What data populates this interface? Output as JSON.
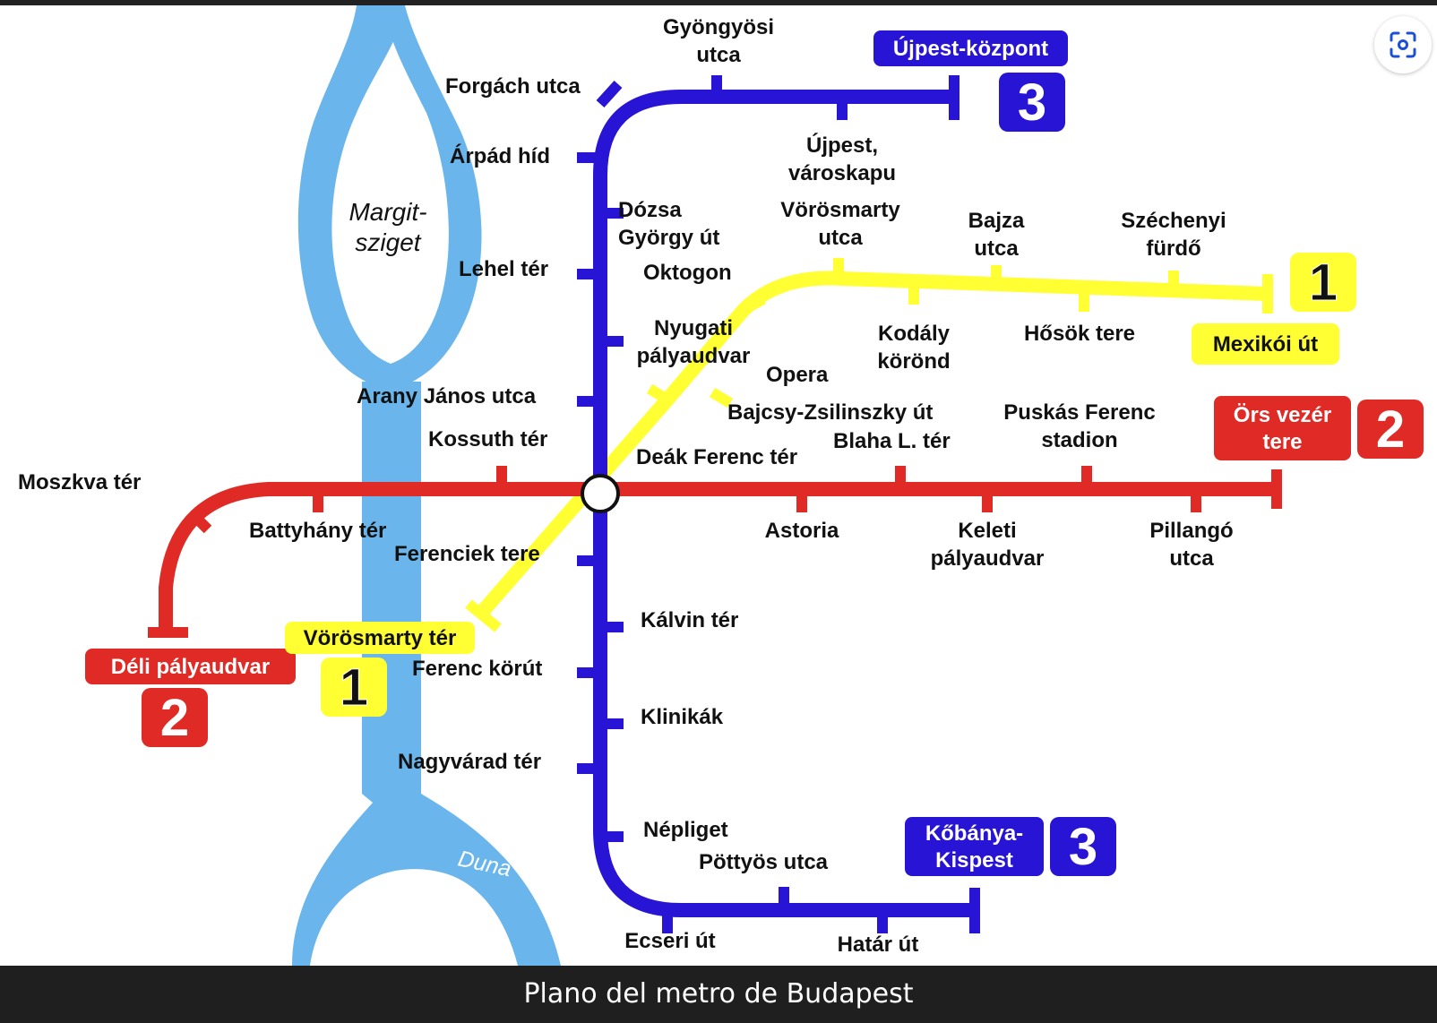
{
  "caption": "Plano del metro de Budapest",
  "lens_button": {
    "icon": "lens-scan-icon"
  },
  "map": {
    "colors": {
      "river": "#6ab6ec",
      "line1": "#ffff33",
      "line2": "#e02a25",
      "line3": "#2814d4",
      "hub": "#ffffff"
    },
    "river_name": "Duna",
    "island_name": [
      "Margit-",
      "sziget"
    ],
    "stations": [
      {
        "id": "gyongyosi",
        "lines": [
          "Gyöngyösi",
          "utca"
        ]
      },
      {
        "id": "forgach",
        "lines": [
          "Forgách utca"
        ]
      },
      {
        "id": "arpad",
        "lines": [
          "Árpád híd"
        ]
      },
      {
        "id": "ujpest-varoskapu",
        "lines": [
          "Újpest,",
          "városkapu"
        ]
      },
      {
        "id": "dozsa",
        "lines": [
          "Dózsa",
          "György út"
        ]
      },
      {
        "id": "vorosmarty-utca",
        "lines": [
          "Vörösmarty",
          "utca"
        ]
      },
      {
        "id": "bajza",
        "lines": [
          "Bajza",
          "utca"
        ]
      },
      {
        "id": "szechenyi",
        "lines": [
          "Széchenyi",
          "fürdő"
        ]
      },
      {
        "id": "lehel",
        "lines": [
          "Lehel tér"
        ]
      },
      {
        "id": "oktogon",
        "lines": [
          "Oktogon"
        ]
      },
      {
        "id": "kodaly",
        "lines": [
          "Kodály",
          "körönd"
        ]
      },
      {
        "id": "hosok",
        "lines": [
          "Hősök tere"
        ]
      },
      {
        "id": "nyugati",
        "lines": [
          "Nyugati",
          "pályaudvar"
        ]
      },
      {
        "id": "opera",
        "lines": [
          "Opera"
        ]
      },
      {
        "id": "arany",
        "lines": [
          "Arany János utca"
        ]
      },
      {
        "id": "bajcsy",
        "lines": [
          "Bajcsy-Zsilinszky út"
        ]
      },
      {
        "id": "puskas",
        "lines": [
          "Puskás Ferenc",
          "stadion"
        ]
      },
      {
        "id": "kossuth",
        "lines": [
          "Kossuth tér"
        ]
      },
      {
        "id": "blaha",
        "lines": [
          "Blaha L. tér"
        ]
      },
      {
        "id": "deak",
        "lines": [
          "Deák Ferenc tér"
        ]
      },
      {
        "id": "moszkva",
        "lines": [
          "Moszkva tér"
        ]
      },
      {
        "id": "batthyany",
        "lines": [
          "Battyhány tér"
        ]
      },
      {
        "id": "astoria",
        "lines": [
          "Astoria"
        ]
      },
      {
        "id": "keleti",
        "lines": [
          "Keleti",
          "pályaudvar"
        ]
      },
      {
        "id": "pillango",
        "lines": [
          "Pillangó",
          "utca"
        ]
      },
      {
        "id": "ferenciek",
        "lines": [
          "Ferenciek tere"
        ]
      },
      {
        "id": "kalvin",
        "lines": [
          "Kálvin tér"
        ]
      },
      {
        "id": "ferenc-korut",
        "lines": [
          "Ferenc körút"
        ]
      },
      {
        "id": "klinikak",
        "lines": [
          "Klinikák"
        ]
      },
      {
        "id": "nagyvarad",
        "lines": [
          "Nagyvárad tér"
        ]
      },
      {
        "id": "nepliget",
        "lines": [
          "Népliget"
        ]
      },
      {
        "id": "pottyos",
        "lines": [
          "Pöttyös utca"
        ]
      },
      {
        "id": "ecseri",
        "lines": [
          "Ecseri út"
        ]
      },
      {
        "id": "hatar",
        "lines": [
          "Határ út"
        ]
      }
    ],
    "terminals": [
      {
        "id": "ujpest-kozpont",
        "lines": [
          "Újpest-központ"
        ],
        "line": "3"
      },
      {
        "id": "mexikoi",
        "lines": [
          "Mexikói út"
        ],
        "line": "1"
      },
      {
        "id": "ors-vezer",
        "lines": [
          "Örs vezér",
          "tere"
        ],
        "line": "2"
      },
      {
        "id": "deli",
        "lines": [
          "Déli pályaudvar"
        ],
        "line": "2"
      },
      {
        "id": "vorosmarty-ter",
        "lines": [
          "Vörösmarty tér"
        ],
        "line": "1"
      },
      {
        "id": "kobanya-kispest",
        "lines": [
          "Kőbánya-",
          "Kispest"
        ],
        "line": "3"
      }
    ],
    "line_badges": [
      {
        "id": "badge-m3-north",
        "label": "3"
      },
      {
        "id": "badge-m1-east",
        "label": "1"
      },
      {
        "id": "badge-m2-east",
        "label": "2"
      },
      {
        "id": "badge-m2-west",
        "label": "2"
      },
      {
        "id": "badge-m1-south",
        "label": "1"
      },
      {
        "id": "badge-m3-south",
        "label": "3"
      }
    ]
  }
}
